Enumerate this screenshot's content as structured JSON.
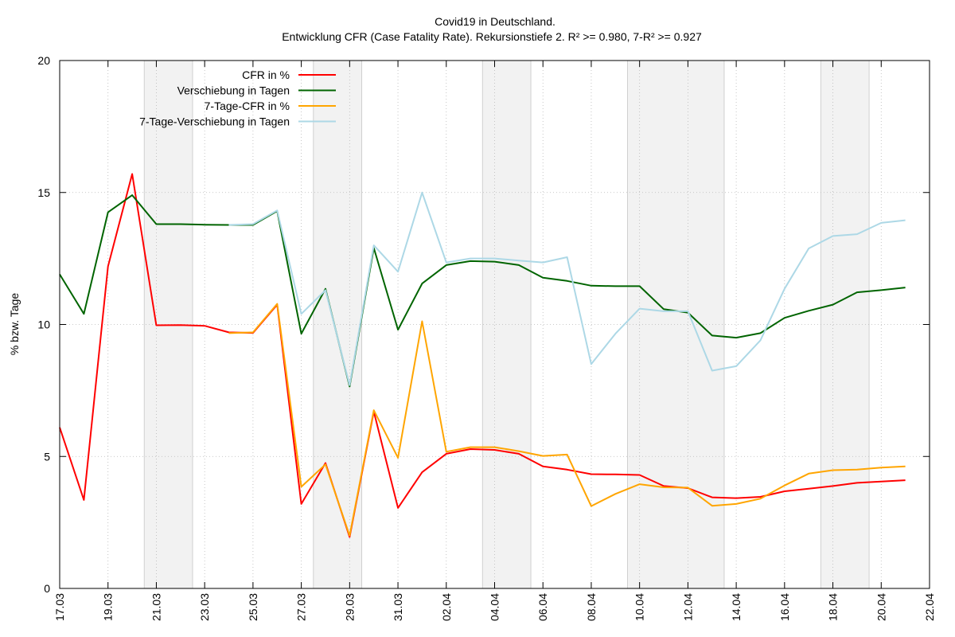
{
  "chart_data": {
    "type": "line",
    "title_line1": "Covid19 in Deutschland.",
    "title_line2": "Entwicklung CFR (Case Fatality Rate). Rekursionstiefe 2. R² >= 0.980, 7-R² >= 0.927",
    "ylabel": "% bzw. Tage",
    "xlabel": "",
    "ylim": [
      0,
      20
    ],
    "y_ticks": [
      0,
      5,
      10,
      15,
      20
    ],
    "x_ticks": [
      "17.03",
      "19.03",
      "21.03",
      "23.03",
      "25.03",
      "27.03",
      "29.03",
      "31.03",
      "02.04",
      "04.04",
      "06.04",
      "08.04",
      "10.04",
      "12.04",
      "14.04",
      "16.04",
      "18.04",
      "20.04",
      "22.04"
    ],
    "x": [
      "17.03",
      "18.03",
      "19.03",
      "20.03",
      "21.03",
      "22.03",
      "23.03",
      "24.03",
      "25.03",
      "26.03",
      "27.03",
      "28.03",
      "29.03",
      "30.03",
      "31.03",
      "01.04",
      "02.04",
      "03.04",
      "04.04",
      "05.04",
      "06.04",
      "07.04",
      "08.04",
      "09.04",
      "10.04",
      "11.04",
      "12.04",
      "13.04",
      "14.04",
      "15.04",
      "16.04",
      "17.04",
      "18.04",
      "19.04",
      "20.04",
      "21.04"
    ],
    "weekend_shading": [
      [
        "20.03",
        "22.03"
      ],
      [
        "27.03",
        "29.03"
      ],
      [
        "03.04",
        "05.04"
      ],
      [
        "09.04",
        "13.04"
      ],
      [
        "17.04",
        "19.04"
      ]
    ],
    "grid": true,
    "legend_position": "top-left",
    "series": [
      {
        "name": "CFR in %",
        "color": "#ff0000",
        "values": [
          6.1,
          3.35,
          12.2,
          15.7,
          9.97,
          9.98,
          9.95,
          9.7,
          9.68,
          10.75,
          3.2,
          4.75,
          1.95,
          6.7,
          3.05,
          4.4,
          5.1,
          5.28,
          5.25,
          5.1,
          4.62,
          4.5,
          4.33,
          4.32,
          4.3,
          3.88,
          3.8,
          3.45,
          3.42,
          3.47,
          3.68,
          3.78,
          3.88,
          4.0,
          4.05,
          4.1
        ]
      },
      {
        "name": "Verschiebung in Tagen",
        "color": "#006400",
        "values": [
          11.9,
          10.4,
          14.25,
          14.9,
          13.8,
          13.8,
          13.78,
          13.77,
          13.77,
          14.3,
          9.65,
          11.35,
          7.65,
          12.9,
          9.8,
          11.55,
          12.25,
          12.4,
          12.38,
          12.25,
          11.77,
          11.65,
          11.47,
          11.45,
          11.45,
          10.58,
          10.45,
          9.58,
          9.5,
          9.67,
          10.25,
          10.52,
          10.75,
          11.22,
          11.3,
          11.4
        ]
      },
      {
        "name": "7-Tage-CFR in %",
        "color": "#ffa500",
        "values": [
          null,
          null,
          null,
          null,
          null,
          null,
          null,
          9.67,
          9.7,
          10.78,
          3.85,
          4.7,
          2.0,
          6.75,
          4.95,
          10.12,
          5.18,
          5.35,
          5.35,
          5.2,
          5.02,
          5.07,
          3.12,
          3.58,
          3.95,
          3.83,
          3.82,
          3.13,
          3.2,
          3.4,
          3.9,
          4.35,
          4.48,
          4.5,
          4.58,
          4.62
        ]
      },
      {
        "name": "7-Tage-Verschiebung in Tagen",
        "color": "#add8e6",
        "values": [
          null,
          null,
          null,
          null,
          null,
          null,
          null,
          13.77,
          13.8,
          14.32,
          10.4,
          11.3,
          7.7,
          13.0,
          12.0,
          15.0,
          12.35,
          12.5,
          12.5,
          12.42,
          12.35,
          12.55,
          8.5,
          9.65,
          10.6,
          10.5,
          10.5,
          8.25,
          8.42,
          9.4,
          11.35,
          12.88,
          13.35,
          13.42,
          13.85,
          13.95
        ]
      }
    ]
  }
}
